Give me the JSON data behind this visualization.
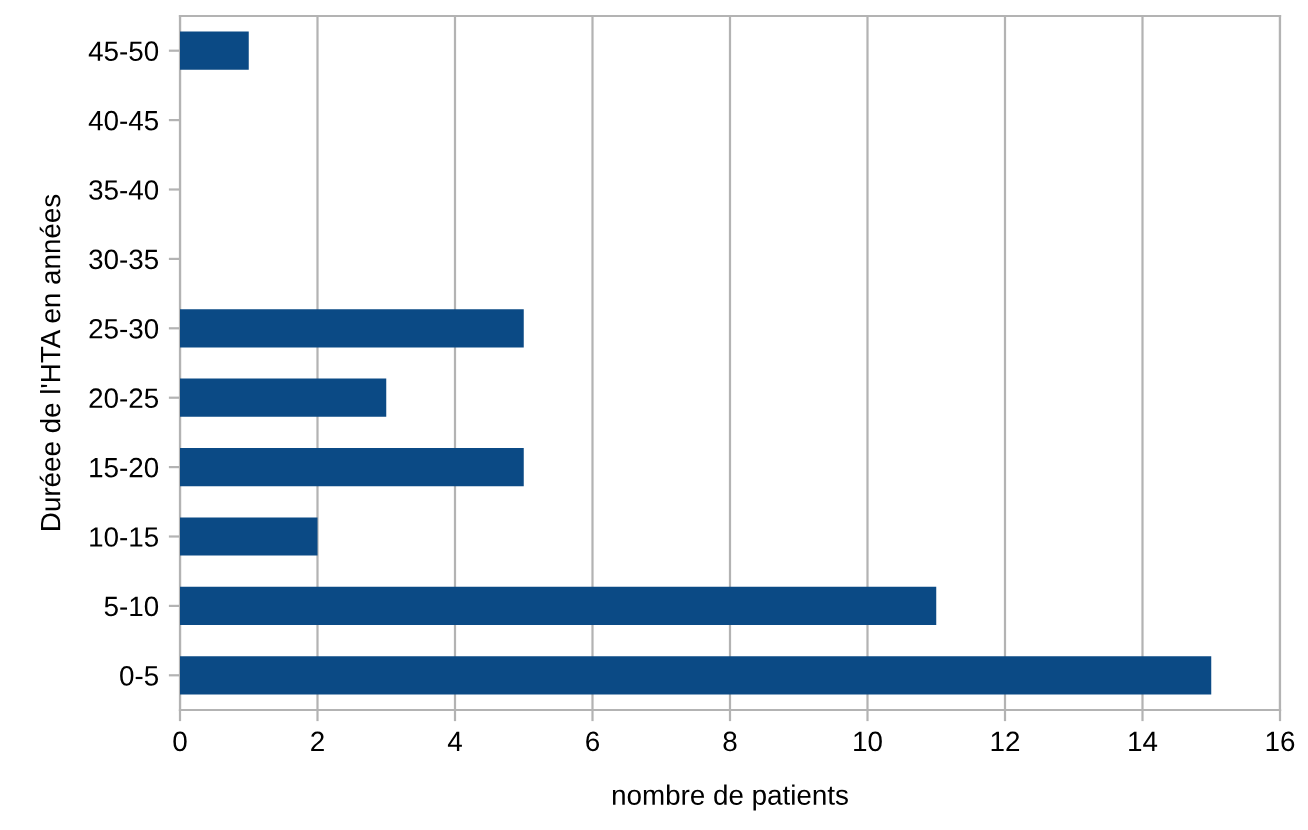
{
  "chart_data": {
    "type": "bar",
    "orientation": "horizontal",
    "categories": [
      "45-50",
      "40-45",
      "35-40",
      "30-35",
      "25-30",
      "20-25",
      "15-20",
      "10-15",
      "5-10",
      "0-5"
    ],
    "values": [
      1,
      0,
      0,
      0,
      5,
      3,
      5,
      2,
      11,
      15
    ],
    "color": "#0b4a85",
    "xlabel": "nombre de patients",
    "ylabel": "Duréee de l'HTA en années",
    "xlim": [
      0,
      16
    ],
    "xticks": [
      0,
      2,
      4,
      6,
      8,
      10,
      12,
      14,
      16
    ],
    "grid": "x",
    "legend": false
  }
}
